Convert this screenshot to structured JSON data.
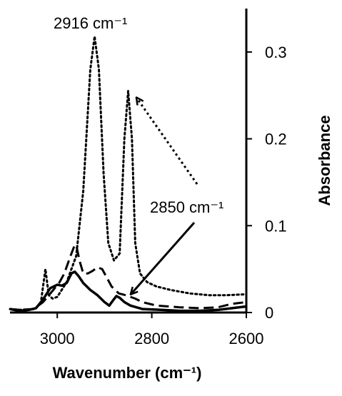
{
  "chart_data": {
    "type": "line",
    "xlabel": "Wavenumber (cm⁻¹)",
    "ylabel": "Absorbance",
    "xlim": [
      3100,
      2600
    ],
    "ylim": [
      0,
      0.35
    ],
    "x_ticks": [
      3000,
      2800,
      2600
    ],
    "y_ticks": [
      0,
      0.1,
      0.2,
      0.3
    ],
    "y_tick_labels": [
      "0",
      "0.1",
      "0.2",
      "0.3"
    ],
    "y_axis_position": "right",
    "grid": false,
    "legend": "none",
    "series": [
      {
        "style": "dotted",
        "color": "#000000",
        "points": [
          [
            3100,
            0.004
          ],
          [
            3080,
            0.003
          ],
          [
            3050,
            0.004
          ],
          [
            3035,
            0.01
          ],
          [
            3025,
            0.05
          ],
          [
            3018,
            0.02
          ],
          [
            3010,
            0.016
          ],
          [
            3000,
            0.018
          ],
          [
            2980,
            0.035
          ],
          [
            2960,
            0.065
          ],
          [
            2945,
            0.14
          ],
          [
            2930,
            0.28
          ],
          [
            2921,
            0.318
          ],
          [
            2912,
            0.28
          ],
          [
            2902,
            0.16
          ],
          [
            2892,
            0.08
          ],
          [
            2880,
            0.06
          ],
          [
            2868,
            0.068
          ],
          [
            2858,
            0.2
          ],
          [
            2850,
            0.255
          ],
          [
            2842,
            0.2
          ],
          [
            2835,
            0.08
          ],
          [
            2825,
            0.045
          ],
          [
            2810,
            0.035
          ],
          [
            2790,
            0.03
          ],
          [
            2760,
            0.026
          ],
          [
            2720,
            0.022
          ],
          [
            2680,
            0.02
          ],
          [
            2640,
            0.02
          ],
          [
            2600,
            0.021
          ]
        ]
      },
      {
        "style": "dashed",
        "color": "#000000",
        "points": [
          [
            3100,
            0.004
          ],
          [
            3080,
            0.003
          ],
          [
            3050,
            0.004
          ],
          [
            3030,
            0.012
          ],
          [
            3010,
            0.025
          ],
          [
            2995,
            0.035
          ],
          [
            2985,
            0.045
          ],
          [
            2972,
            0.065
          ],
          [
            2965,
            0.075
          ],
          [
            2960,
            0.078
          ],
          [
            2953,
            0.06
          ],
          [
            2945,
            0.045
          ],
          [
            2935,
            0.045
          ],
          [
            2925,
            0.048
          ],
          [
            2915,
            0.052
          ],
          [
            2905,
            0.05
          ],
          [
            2895,
            0.04
          ],
          [
            2885,
            0.03
          ],
          [
            2870,
            0.022
          ],
          [
            2855,
            0.02
          ],
          [
            2845,
            0.018
          ],
          [
            2835,
            0.016
          ],
          [
            2820,
            0.012
          ],
          [
            2790,
            0.008
          ],
          [
            2740,
            0.006
          ],
          [
            2700,
            0.005
          ],
          [
            2660,
            0.006
          ],
          [
            2630,
            0.01
          ],
          [
            2600,
            0.012
          ]
        ]
      },
      {
        "style": "solid",
        "color": "#000000",
        "points": [
          [
            3100,
            0.004
          ],
          [
            3080,
            0.002
          ],
          [
            3060,
            0.003
          ],
          [
            3045,
            0.005
          ],
          [
            3030,
            0.015
          ],
          [
            3015,
            0.028
          ],
          [
            3000,
            0.032
          ],
          [
            2990,
            0.031
          ],
          [
            2980,
            0.034
          ],
          [
            2970,
            0.045
          ],
          [
            2963,
            0.047
          ],
          [
            2955,
            0.042
          ],
          [
            2945,
            0.034
          ],
          [
            2930,
            0.026
          ],
          [
            2915,
            0.02
          ],
          [
            2900,
            0.012
          ],
          [
            2890,
            0.008
          ],
          [
            2882,
            0.014
          ],
          [
            2875,
            0.019
          ],
          [
            2868,
            0.017
          ],
          [
            2858,
            0.012
          ],
          [
            2845,
            0.008
          ],
          [
            2820,
            0.004
          ],
          [
            2780,
            0.003
          ],
          [
            2740,
            0.002
          ],
          [
            2700,
            0.002
          ],
          [
            2660,
            0.003
          ],
          [
            2630,
            0.005
          ],
          [
            2600,
            0.007
          ]
        ]
      }
    ],
    "annotations": [
      {
        "text": "2916 cm⁻¹",
        "arrow_style": "none"
      },
      {
        "text": "2850 cm⁻¹",
        "arrow_style": "solid",
        "arrow_target": [
          2850,
          0.018
        ]
      },
      {
        "text": "",
        "arrow_style": "dotted",
        "arrow_target": [
          2850,
          0.252
        ]
      }
    ]
  }
}
